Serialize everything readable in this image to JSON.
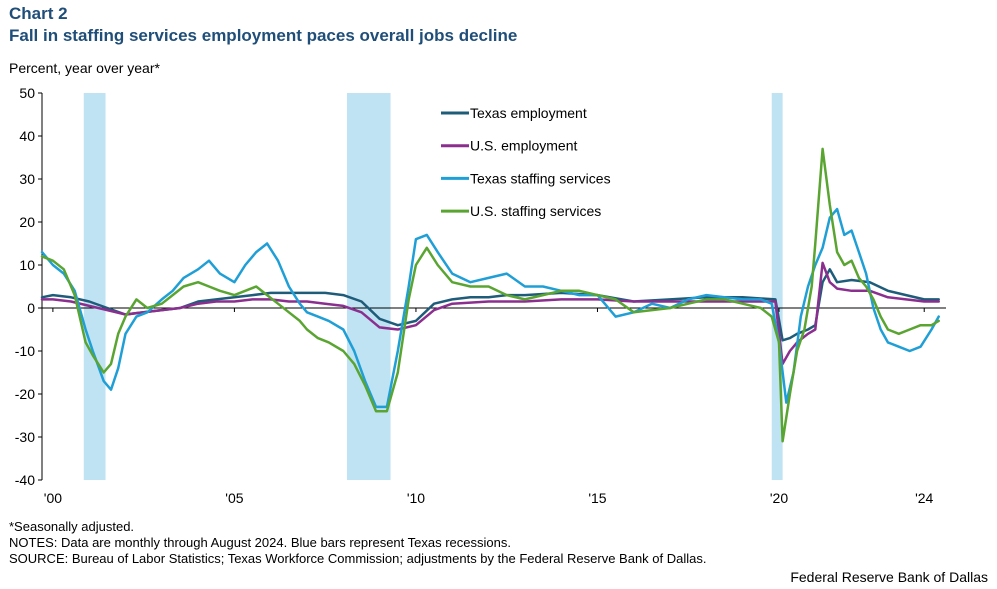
{
  "header": {
    "chart_number": "Chart 2",
    "title": "Fall in staffing services employment paces overall jobs decline"
  },
  "footer": {
    "seasonal_note": "*Seasonally adjusted.",
    "notes": "NOTES: Data are monthly through August 2024. Blue bars represent Texas recessions.",
    "source": "SOURCE: Bureau of Labor Statistics; Texas Workforce Commission; adjustments by the Federal Reserve Bank of Dallas.",
    "credit": "Federal Reserve Bank of Dallas"
  },
  "colors": {
    "texas_employment": "#1f5c7a",
    "us_employment": "#8b2f8f",
    "texas_staffing": "#1f9fd6",
    "us_staffing": "#5aa532",
    "recession": "#bfe3f3"
  },
  "chart_data": {
    "type": "line",
    "ylabel": "Percent, year over year*",
    "ylim": [
      -40,
      50
    ],
    "yticks": [
      50,
      40,
      30,
      20,
      10,
      0,
      -10,
      -20,
      -30,
      -40
    ],
    "xlim": [
      1999.7,
      2024.6
    ],
    "xticks": [
      {
        "value": 2000,
        "label": "'00"
      },
      {
        "value": 2005,
        "label": "'05"
      },
      {
        "value": 2010,
        "label": "'10"
      },
      {
        "value": 2015,
        "label": "'15"
      },
      {
        "value": 2020,
        "label": "'20"
      },
      {
        "value": 2024,
        "label": "'24"
      }
    ],
    "legend_position": "top-center",
    "recessions": [
      [
        2000.85,
        2001.45
      ],
      [
        2008.1,
        2009.3
      ],
      [
        2019.8,
        2020.1
      ]
    ],
    "series": [
      {
        "name": "Texas employment",
        "color_key": "texas_employment",
        "x": [
          1999.7,
          2000.0,
          2000.5,
          2001.0,
          2001.5,
          2002.0,
          2002.5,
          2003.0,
          2003.5,
          2004.0,
          2004.5,
          2005.0,
          2005.5,
          2006.0,
          2006.5,
          2007.0,
          2007.5,
          2008.0,
          2008.5,
          2009.0,
          2009.5,
          2010.0,
          2010.5,
          2011.0,
          2011.5,
          2012.0,
          2012.5,
          2013.0,
          2014.0,
          2015.0,
          2016.0,
          2017.0,
          2018.0,
          2019.0,
          2019.9,
          2020.1,
          2020.3,
          2020.5,
          2020.8,
          2021.0,
          2021.2,
          2021.4,
          2021.6,
          2022.0,
          2022.5,
          2023.0,
          2023.5,
          2024.0,
          2024.4
        ],
        "values": [
          2.5,
          3.0,
          2.5,
          1.5,
          0.0,
          -1.5,
          -1.0,
          -0.5,
          0.0,
          1.5,
          2.0,
          2.5,
          3.0,
          3.5,
          3.5,
          3.5,
          3.5,
          3.0,
          1.5,
          -2.5,
          -4.0,
          -3.0,
          1.0,
          2.0,
          2.5,
          2.5,
          3.0,
          3.0,
          3.5,
          3.0,
          1.5,
          2.0,
          2.5,
          2.5,
          2.0,
          -7.5,
          -7.0,
          -6.0,
          -5.0,
          -4.0,
          6.0,
          9.0,
          6.0,
          6.5,
          6.0,
          4.0,
          3.0,
          2.0,
          2.0
        ]
      },
      {
        "name": "U.S. employment",
        "color_key": "us_employment",
        "x": [
          1999.7,
          2000.0,
          2000.5,
          2001.0,
          2001.5,
          2002.0,
          2002.5,
          2003.0,
          2003.5,
          2004.0,
          2004.5,
          2005.0,
          2005.5,
          2006.0,
          2006.5,
          2007.0,
          2007.5,
          2008.0,
          2008.5,
          2009.0,
          2009.5,
          2010.0,
          2010.5,
          2011.0,
          2012.0,
          2013.0,
          2014.0,
          2015.0,
          2016.0,
          2017.0,
          2018.0,
          2019.0,
          2019.9,
          2020.1,
          2020.3,
          2020.5,
          2020.8,
          2021.0,
          2021.2,
          2021.4,
          2021.6,
          2022.0,
          2022.5,
          2023.0,
          2023.5,
          2024.0,
          2024.4
        ],
        "values": [
          2.0,
          2.0,
          1.5,
          0.5,
          -0.5,
          -1.5,
          -1.0,
          -0.5,
          0.0,
          1.0,
          1.5,
          1.5,
          2.0,
          2.0,
          1.5,
          1.5,
          1.0,
          0.5,
          -1.0,
          -4.5,
          -5.0,
          -4.0,
          -0.5,
          1.0,
          1.5,
          1.5,
          2.0,
          2.0,
          1.5,
          1.5,
          1.5,
          1.5,
          1.5,
          -13.0,
          -10.0,
          -8.0,
          -6.0,
          -5.0,
          10.5,
          6.0,
          4.5,
          4.0,
          4.0,
          2.5,
          2.0,
          1.5,
          1.5
        ]
      },
      {
        "name": "Texas staffing services",
        "color_key": "texas_staffing",
        "x": [
          1999.7,
          2000.0,
          2000.3,
          2000.6,
          2000.9,
          2001.1,
          2001.4,
          2001.6,
          2001.8,
          2002.0,
          2002.3,
          2002.6,
          2003.0,
          2003.3,
          2003.6,
          2004.0,
          2004.3,
          2004.6,
          2005.0,
          2005.3,
          2005.6,
          2005.9,
          2006.2,
          2006.5,
          2006.8,
          2007.0,
          2007.3,
          2007.6,
          2008.0,
          2008.3,
          2008.6,
          2008.9,
          2009.2,
          2009.5,
          2009.8,
          2010.0,
          2010.3,
          2010.6,
          2011.0,
          2011.5,
          2012.0,
          2012.5,
          2013.0,
          2013.5,
          2014.0,
          2014.5,
          2015.0,
          2015.5,
          2016.0,
          2016.5,
          2017.0,
          2017.5,
          2018.0,
          2018.5,
          2019.0,
          2019.5,
          2019.8,
          2020.0,
          2020.2,
          2020.4,
          2020.6,
          2020.8,
          2021.0,
          2021.2,
          2021.4,
          2021.6,
          2021.8,
          2022.0,
          2022.2,
          2022.4,
          2022.6,
          2022.8,
          2023.0,
          2023.3,
          2023.6,
          2023.9,
          2024.2,
          2024.4
        ],
        "values": [
          13.0,
          10.0,
          8.0,
          4.0,
          -5.0,
          -10.0,
          -17.0,
          -19.0,
          -14.0,
          -6.0,
          -2.0,
          -1.0,
          2.0,
          4.0,
          7.0,
          9.0,
          11.0,
          8.0,
          6.0,
          10.0,
          13.0,
          15.0,
          11.0,
          5.0,
          1.0,
          -1.0,
          -2.0,
          -3.0,
          -5.0,
          -10.0,
          -17.0,
          -23.0,
          -23.0,
          -10.0,
          5.0,
          16.0,
          17.0,
          13.0,
          8.0,
          6.0,
          7.0,
          8.0,
          5.0,
          5.0,
          4.0,
          3.0,
          3.0,
          -2.0,
          -1.0,
          1.0,
          0.0,
          2.0,
          3.0,
          2.5,
          2.0,
          2.0,
          1.0,
          -8.0,
          -22.0,
          -15.0,
          -2.0,
          5.0,
          10.0,
          14.0,
          21.0,
          23.0,
          17.0,
          18.0,
          13.0,
          8.0,
          0.0,
          -5.0,
          -8.0,
          -9.0,
          -10.0,
          -9.0,
          -5.0,
          -2.0
        ]
      },
      {
        "name": "U.S. staffing services",
        "color_key": "us_staffing",
        "x": [
          1999.7,
          2000.0,
          2000.3,
          2000.6,
          2000.9,
          2001.1,
          2001.4,
          2001.6,
          2001.8,
          2002.0,
          2002.3,
          2002.6,
          2003.0,
          2003.3,
          2003.6,
          2004.0,
          2004.3,
          2004.6,
          2005.0,
          2005.3,
          2005.6,
          2005.9,
          2006.2,
          2006.5,
          2006.8,
          2007.0,
          2007.3,
          2007.6,
          2008.0,
          2008.3,
          2008.6,
          2008.9,
          2009.2,
          2009.5,
          2009.8,
          2010.0,
          2010.3,
          2010.6,
          2011.0,
          2011.5,
          2012.0,
          2012.5,
          2013.0,
          2013.5,
          2014.0,
          2014.5,
          2015.0,
          2015.5,
          2016.0,
          2016.5,
          2017.0,
          2017.5,
          2018.0,
          2018.5,
          2019.0,
          2019.5,
          2019.8,
          2020.0,
          2020.1,
          2020.3,
          2020.5,
          2020.7,
          2020.9,
          2021.0,
          2021.2,
          2021.4,
          2021.6,
          2021.8,
          2022.0,
          2022.2,
          2022.4,
          2022.6,
          2022.8,
          2023.0,
          2023.3,
          2023.6,
          2023.9,
          2024.2,
          2024.4
        ],
        "values": [
          12.0,
          11.0,
          9.0,
          3.0,
          -8.0,
          -11.0,
          -15.0,
          -13.0,
          -6.0,
          -2.0,
          2.0,
          0.0,
          1.0,
          3.0,
          5.0,
          6.0,
          5.0,
          4.0,
          3.0,
          4.0,
          5.0,
          3.0,
          1.0,
          -1.0,
          -3.0,
          -5.0,
          -7.0,
          -8.0,
          -10.0,
          -13.0,
          -18.0,
          -24.0,
          -24.0,
          -15.0,
          2.0,
          10.0,
          14.0,
          10.0,
          6.0,
          5.0,
          5.0,
          3.0,
          2.0,
          3.0,
          4.0,
          4.0,
          3.0,
          2.0,
          -1.0,
          -0.5,
          0.0,
          1.0,
          2.0,
          2.0,
          1.0,
          0.0,
          -2.0,
          -8.0,
          -31.0,
          -20.0,
          -10.0,
          -5.0,
          5.0,
          15.0,
          37.0,
          24.0,
          13.0,
          10.0,
          11.0,
          7.0,
          5.0,
          2.0,
          -2.0,
          -5.0,
          -6.0,
          -5.0,
          -4.0,
          -4.0,
          -3.0
        ]
      }
    ]
  }
}
